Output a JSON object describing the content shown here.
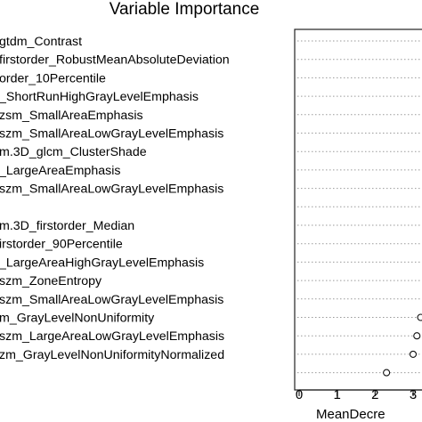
{
  "chart_data": {
    "type": "dotplot",
    "title": "Variable Importance",
    "xlabel": "MeanDecre",
    "ylabel": "",
    "xlim": [
      0,
      3
    ],
    "x_ticks": [
      0,
      1,
      2,
      3
    ],
    "grid": "dotted horizontal lines",
    "legend": "none",
    "variables": [
      "gtdm_Contrast",
      "firstorder_RobustMeanAbsoluteDeviation",
      "order_10Percentile",
      "_ShortRunHighGrayLevelEmphasis",
      "zsm_SmallAreaEmphasis",
      "szm_SmallAreaLowGrayLevelEmphasis",
      "m.3D_glcm_ClusterShade",
      "_LargeAreaEmphasis",
      "szm_SmallAreaLowGrayLevelEmphasis",
      "",
      "m.3D_firstorder_Median",
      "irstorder_90Percentile",
      "_LargeAreaHighGrayLevelEmphasis",
      "szm_ZoneEntropy",
      "szm_SmallAreaLowGrayLevelEmphasis",
      "m_GrayLevelNonUniformity",
      "szm_LargeAreaLowGrayLevelEmphasis",
      "zm_GrayLevelNonUniformityNormalized",
      ""
    ],
    "values": [
      null,
      null,
      null,
      null,
      null,
      null,
      null,
      null,
      null,
      null,
      null,
      null,
      null,
      null,
      null,
      3.2,
      3.1,
      3.0,
      2.3
    ]
  }
}
